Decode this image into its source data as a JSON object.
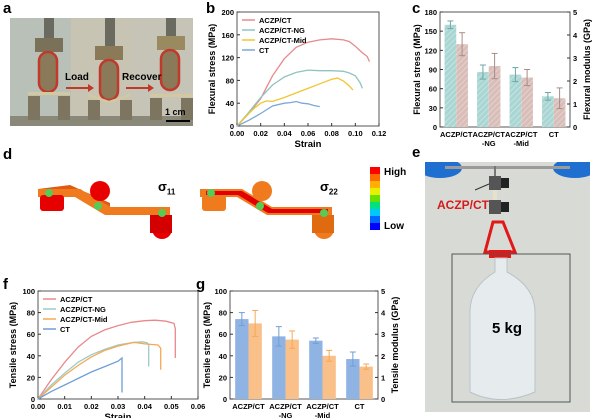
{
  "panels": {
    "a": {
      "label": "a",
      "load_label": "Load",
      "recover_label": "Recover",
      "scale_bar": "1 cm"
    },
    "b": {
      "label": "b"
    },
    "c": {
      "label": "c"
    },
    "d": {
      "label": "d",
      "sigma11_base": "σ",
      "sigma11_sub": "11",
      "sigma22_base": "σ",
      "sigma22_sub": "22",
      "colorbar_high": "High",
      "colorbar_low": "Low",
      "colorbar_colors": [
        "#ff0000",
        "#ff6a00",
        "#ffb000",
        "#e8f000",
        "#66e000",
        "#00e080",
        "#00c8ff",
        "#0066ff",
        "#0000ff"
      ]
    },
    "e": {
      "label": "e",
      "sample_label": "ACZP/CT",
      "weight_label": "5 kg"
    },
    "f": {
      "label": "f"
    },
    "g": {
      "label": "g"
    }
  },
  "chart_data": [
    {
      "id": "b",
      "type": "line",
      "title": "",
      "xlabel": "Strain",
      "ylabel": "Flexural stress (MPa)",
      "xlim": [
        0,
        0.12
      ],
      "ylim": [
        0,
        200
      ],
      "xticks": [
        "0.00",
        "0.02",
        "0.04",
        "0.06",
        "0.08",
        "0.10",
        "0.12"
      ],
      "yticks": [
        "0",
        "40",
        "80",
        "120",
        "160",
        "200"
      ],
      "legend_position": "top-left",
      "series": [
        {
          "name": "ACZP/CT",
          "color": "#e8898b",
          "x": [
            0,
            0.01,
            0.02,
            0.03,
            0.04,
            0.05,
            0.06,
            0.07,
            0.08,
            0.09,
            0.095,
            0.1,
            0.105,
            0.11,
            0.112
          ],
          "y": [
            0,
            22,
            48,
            88,
            118,
            138,
            147,
            151,
            153,
            151,
            148,
            140,
            130,
            122,
            113
          ]
        },
        {
          "name": "ACZP/CT-NG",
          "color": "#8fc4c0",
          "x": [
            0,
            0.01,
            0.02,
            0.03,
            0.04,
            0.05,
            0.06,
            0.07,
            0.08,
            0.09,
            0.095,
            0.1,
            0.104,
            0.106
          ],
          "y": [
            0,
            24,
            50,
            72,
            86,
            94,
            98,
            97,
            97,
            96,
            93,
            88,
            76,
            66
          ]
        },
        {
          "name": "ACZP/CT-Mid",
          "color": "#f2c531",
          "x": [
            0,
            0.01,
            0.015,
            0.02,
            0.025,
            0.03,
            0.04,
            0.05,
            0.06,
            0.07,
            0.08,
            0.085,
            0.09,
            0.095,
            0.098
          ],
          "y": [
            0,
            22,
            32,
            40,
            44,
            43,
            50,
            58,
            66,
            74,
            82,
            84,
            79,
            70,
            63
          ]
        },
        {
          "name": "CT",
          "color": "#7aa8d8",
          "x": [
            0,
            0.01,
            0.02,
            0.03,
            0.04,
            0.045,
            0.05,
            0.055,
            0.06,
            0.065,
            0.07
          ],
          "y": [
            0,
            10,
            22,
            35,
            40,
            41,
            43,
            40,
            39,
            36,
            34
          ]
        }
      ]
    },
    {
      "id": "c",
      "type": "bar",
      "title": "",
      "categories": [
        "ACZP/CT\n-",
        "ACZP/CT\n-NG",
        "ACZP/CT\n-Mid",
        "CT"
      ],
      "category_lines": [
        [
          "ACZP/CT"
        ],
        [
          "ACZP/CT",
          "-NG"
        ],
        [
          "ACZP/CT",
          "-Mid"
        ],
        [
          "CT"
        ]
      ],
      "ylabel": "Flexural stress (MPa)",
      "y2label": "Flexural modulus (GPa)",
      "ylim": [
        0,
        180
      ],
      "y2lim": [
        0,
        5
      ],
      "yticks": [
        "0",
        "30",
        "60",
        "90",
        "120",
        "150",
        "180"
      ],
      "y2ticks": [
        "0",
        "1",
        "2",
        "3",
        "4",
        "5"
      ],
      "series": [
        {
          "name": "Flexural stress",
          "axis": "left",
          "color": "#a9d6d3",
          "values": [
            160,
            86,
            82,
            48
          ],
          "errors": [
            6,
            11,
            11,
            6
          ]
        },
        {
          "name": "Flexural modulus",
          "axis": "right",
          "color": "#d9bdb8",
          "values": [
            3.6,
            2.65,
            2.15,
            1.25
          ],
          "errors": [
            0.5,
            0.55,
            0.35,
            0.45
          ]
        }
      ]
    },
    {
      "id": "f",
      "type": "line",
      "title": "",
      "xlabel": "Strain",
      "ylabel": "Tensile stress (MPa)",
      "xlim": [
        0,
        0.06
      ],
      "ylim": [
        0,
        100
      ],
      "xticks": [
        "0.00",
        "0.01",
        "0.02",
        "0.03",
        "0.04",
        "0.05",
        "0.06"
      ],
      "yticks": [
        "0",
        "20",
        "40",
        "60",
        "80",
        "100"
      ],
      "legend_position": "top-left",
      "series": [
        {
          "name": "ACZP/CT",
          "color": "#e8898b",
          "x": [
            0,
            0.005,
            0.01,
            0.015,
            0.02,
            0.025,
            0.03,
            0.035,
            0.04,
            0.044,
            0.048,
            0.051,
            0.0515,
            0.0515
          ],
          "y": [
            0,
            18,
            34,
            48,
            58,
            64,
            68,
            71,
            72.5,
            73,
            72,
            70,
            65,
            38
          ]
        },
        {
          "name": "ACZP/CT-NG",
          "color": "#9ccbc8",
          "x": [
            0,
            0.005,
            0.01,
            0.015,
            0.02,
            0.025,
            0.03,
            0.035,
            0.039,
            0.041,
            0.0415,
            0.0415
          ],
          "y": [
            0,
            13,
            24,
            34,
            41,
            46,
            50,
            52,
            53,
            52,
            50,
            30
          ]
        },
        {
          "name": "ACZP/CT-Mid",
          "color": "#f5a955",
          "x": [
            0,
            0.005,
            0.01,
            0.015,
            0.02,
            0.025,
            0.03,
            0.036,
            0.04,
            0.045,
            0.046,
            0.046
          ],
          "y": [
            0,
            11,
            22,
            31,
            39,
            45,
            49,
            52.5,
            51,
            50,
            47,
            27
          ]
        },
        {
          "name": "CT",
          "color": "#6f9fd8",
          "x": [
            0,
            0.005,
            0.01,
            0.015,
            0.02,
            0.025,
            0.03,
            0.0315,
            0.0315
          ],
          "y": [
            0,
            7,
            13,
            19,
            25,
            30,
            35,
            38,
            6
          ]
        }
      ]
    },
    {
      "id": "g",
      "type": "bar",
      "title": "",
      "category_lines": [
        [
          "ACZP/CT"
        ],
        [
          "ACZP/CT",
          "-NG"
        ],
        [
          "ACZP/CT",
          "-Mid"
        ],
        [
          "CT"
        ]
      ],
      "ylabel": "Tensile stress (MPa)",
      "y2label": "Tensile modulus (GPa)",
      "ylim": [
        0,
        100
      ],
      "y2lim": [
        0,
        5
      ],
      "yticks": [
        "0",
        "20",
        "40",
        "60",
        "80",
        "100"
      ],
      "y2ticks": [
        "0",
        "1",
        "2",
        "3",
        "4",
        "5"
      ],
      "series": [
        {
          "name": "Tensile stress",
          "axis": "left",
          "color": "#8fb3e3",
          "values": [
            74,
            58,
            54,
            37
          ],
          "errors": [
            6,
            9,
            2.5,
            6.5
          ]
        },
        {
          "name": "Tensile modulus",
          "axis": "right",
          "color": "#fac08a",
          "values": [
            3.5,
            2.75,
            2.0,
            1.5
          ],
          "errors": [
            0.6,
            0.4,
            0.25,
            0.12
          ]
        }
      ]
    }
  ]
}
